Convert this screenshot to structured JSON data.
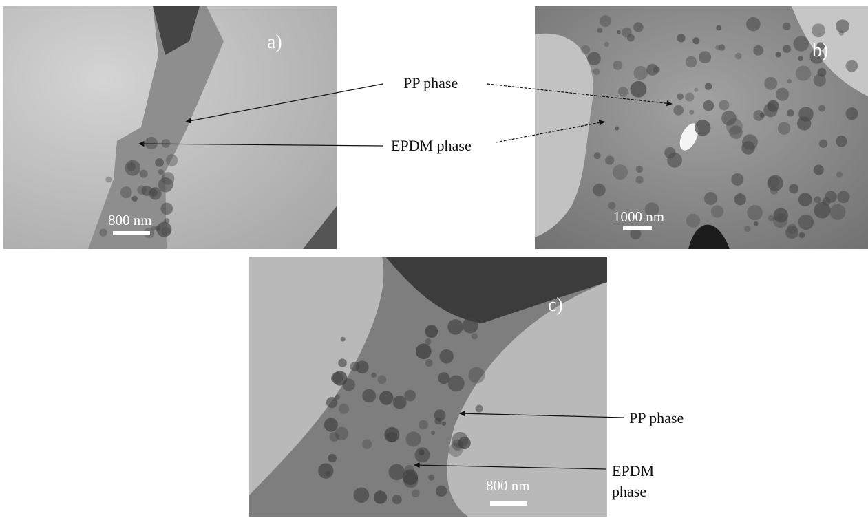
{
  "panels": [
    {
      "label": "a)",
      "scale_bar": "800 nm"
    },
    {
      "label": "b)",
      "scale_bar": "1000 nm"
    },
    {
      "label": "c)",
      "scale_bar": "800 nm"
    }
  ],
  "annotations": [
    {
      "text": "PP phase"
    },
    {
      "text": "EPDM phase"
    },
    {
      "text": "PP phase"
    },
    {
      "lines": [
        "EPDM",
        "phase"
      ]
    }
  ]
}
